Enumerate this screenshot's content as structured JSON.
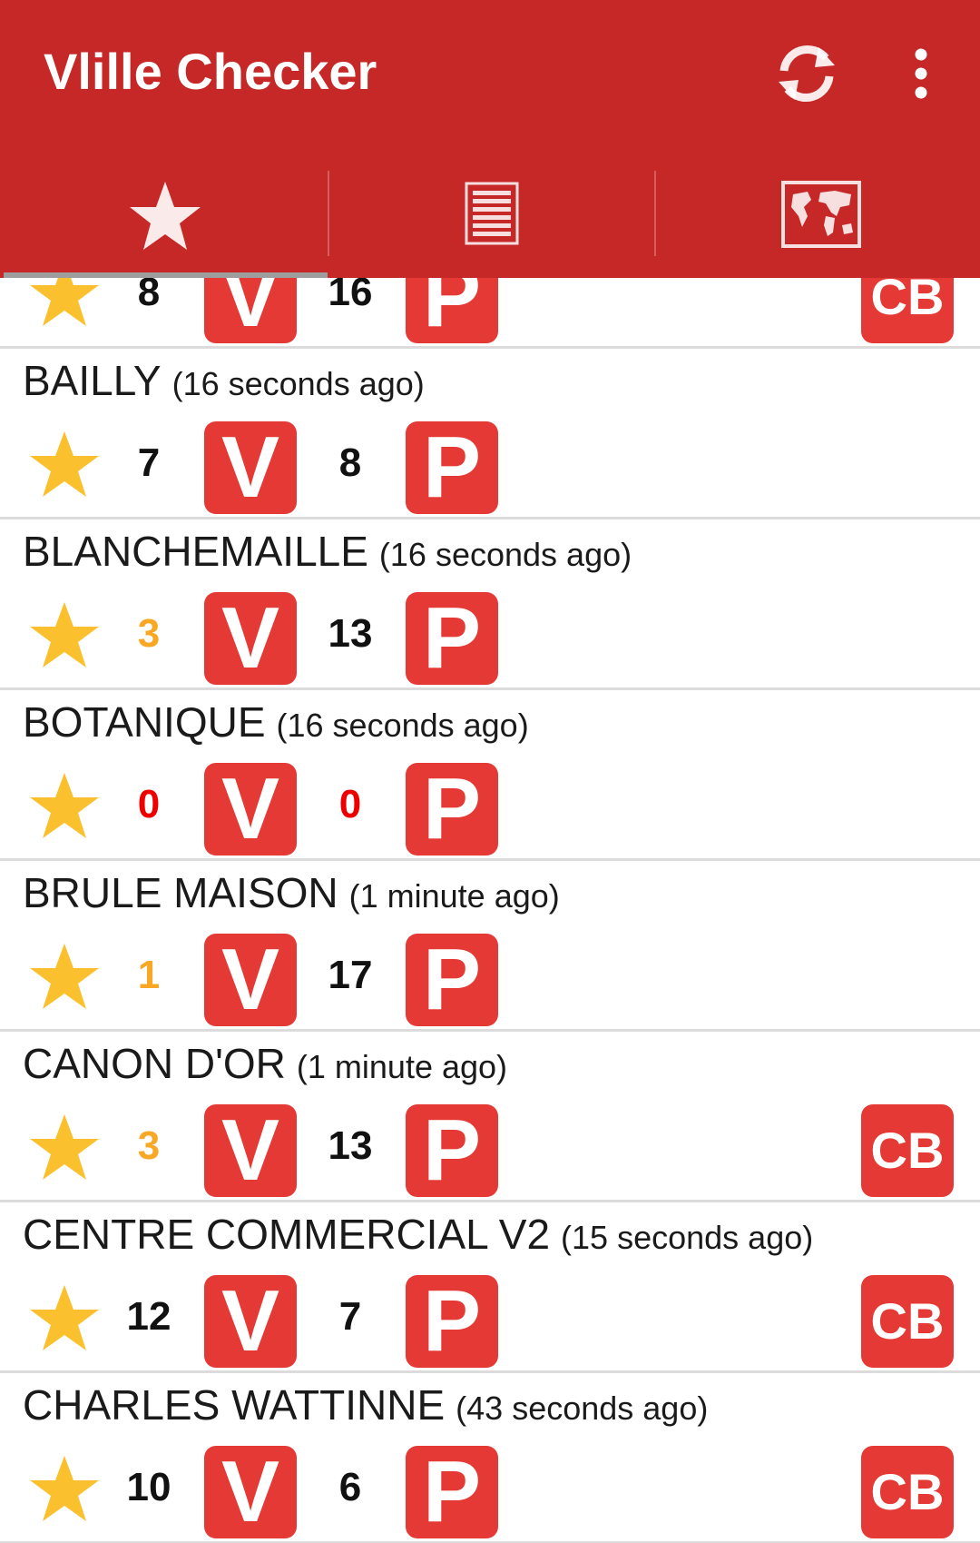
{
  "app": {
    "title": "Vlille Checker",
    "accent_color": "#c62828",
    "badge_color": "#e53935",
    "star_color": "#fbc02d"
  },
  "toolbar": {
    "refresh_icon": "refresh-icon",
    "overflow_icon": "more-vertical-icon"
  },
  "tabs": [
    {
      "name": "favorites",
      "icon": "star-icon",
      "selected": true
    },
    {
      "name": "list",
      "icon": "list-icon",
      "selected": false
    },
    {
      "name": "map",
      "icon": "map-icon",
      "selected": false
    }
  ],
  "colors": {
    "count_normal": "#111111",
    "count_low": "#f9a825",
    "count_zero": "#ee0000"
  },
  "badges": {
    "bikes": "V",
    "slots": "P",
    "card": "CB"
  },
  "stations": [
    {
      "name": "",
      "age": "",
      "bikes": "8",
      "slots": "16",
      "bikes_level": "normal",
      "slots_level": "normal",
      "cb": true
    },
    {
      "name": "BAILLY",
      "age": "(16 seconds ago)",
      "bikes": "7",
      "slots": "8",
      "bikes_level": "normal",
      "slots_level": "normal",
      "cb": false
    },
    {
      "name": "BLANCHEMAILLE",
      "age": "(16 seconds ago)",
      "bikes": "3",
      "slots": "13",
      "bikes_level": "low",
      "slots_level": "normal",
      "cb": false
    },
    {
      "name": "BOTANIQUE",
      "age": "(16 seconds ago)",
      "bikes": "0",
      "slots": "0",
      "bikes_level": "zero",
      "slots_level": "zero",
      "cb": false
    },
    {
      "name": "BRULE MAISON",
      "age": "(1 minute ago)",
      "bikes": "1",
      "slots": "17",
      "bikes_level": "low",
      "slots_level": "normal",
      "cb": false
    },
    {
      "name": "CANON D'OR",
      "age": "(1 minute ago)",
      "bikes": "3",
      "slots": "13",
      "bikes_level": "low",
      "slots_level": "normal",
      "cb": true
    },
    {
      "name": "CENTRE COMMERCIAL V2",
      "age": "(15 seconds ago)",
      "bikes": "12",
      "slots": "7",
      "bikes_level": "normal",
      "slots_level": "normal",
      "cb": true
    },
    {
      "name": "CHARLES WATTINNE",
      "age": "(43 seconds ago)",
      "bikes": "10",
      "slots": "6",
      "bikes_level": "normal",
      "slots_level": "normal",
      "cb": true
    }
  ]
}
